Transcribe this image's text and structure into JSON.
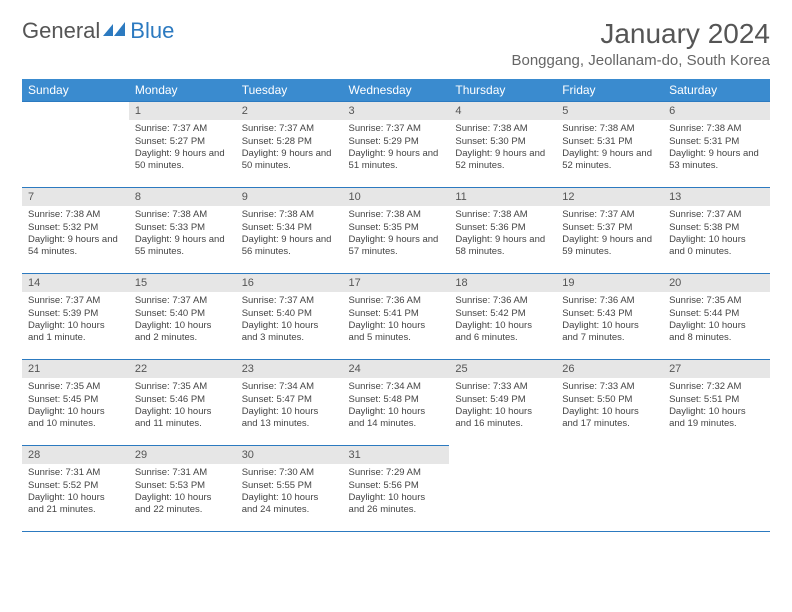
{
  "logo": {
    "text1": "General",
    "text2": "Blue"
  },
  "header": {
    "month_title": "January 2024",
    "location": "Bonggang, Jeollanam-do, South Korea"
  },
  "colors": {
    "header_bg": "#3a8bcf",
    "accent_line": "#2c7ac0",
    "daynum_bg": "#e6e6e6",
    "text": "#444444",
    "logo_gray": "#555555",
    "logo_blue": "#2c7ac0"
  },
  "days_of_week": [
    "Sunday",
    "Monday",
    "Tuesday",
    "Wednesday",
    "Thursday",
    "Friday",
    "Saturday"
  ],
  "calendar": {
    "layout": {
      "columns": 7,
      "rows": 5,
      "first_day_column_index": 1
    },
    "cells": [
      {
        "n": 1,
        "sr": "7:37 AM",
        "ss": "5:27 PM",
        "dl": "9 hours and 50 minutes."
      },
      {
        "n": 2,
        "sr": "7:37 AM",
        "ss": "5:28 PM",
        "dl": "9 hours and 50 minutes."
      },
      {
        "n": 3,
        "sr": "7:37 AM",
        "ss": "5:29 PM",
        "dl": "9 hours and 51 minutes."
      },
      {
        "n": 4,
        "sr": "7:38 AM",
        "ss": "5:30 PM",
        "dl": "9 hours and 52 minutes."
      },
      {
        "n": 5,
        "sr": "7:38 AM",
        "ss": "5:31 PM",
        "dl": "9 hours and 52 minutes."
      },
      {
        "n": 6,
        "sr": "7:38 AM",
        "ss": "5:31 PM",
        "dl": "9 hours and 53 minutes."
      },
      {
        "n": 7,
        "sr": "7:38 AM",
        "ss": "5:32 PM",
        "dl": "9 hours and 54 minutes."
      },
      {
        "n": 8,
        "sr": "7:38 AM",
        "ss": "5:33 PM",
        "dl": "9 hours and 55 minutes."
      },
      {
        "n": 9,
        "sr": "7:38 AM",
        "ss": "5:34 PM",
        "dl": "9 hours and 56 minutes."
      },
      {
        "n": 10,
        "sr": "7:38 AM",
        "ss": "5:35 PM",
        "dl": "9 hours and 57 minutes."
      },
      {
        "n": 11,
        "sr": "7:38 AM",
        "ss": "5:36 PM",
        "dl": "9 hours and 58 minutes."
      },
      {
        "n": 12,
        "sr": "7:37 AM",
        "ss": "5:37 PM",
        "dl": "9 hours and 59 minutes."
      },
      {
        "n": 13,
        "sr": "7:37 AM",
        "ss": "5:38 PM",
        "dl": "10 hours and 0 minutes."
      },
      {
        "n": 14,
        "sr": "7:37 AM",
        "ss": "5:39 PM",
        "dl": "10 hours and 1 minute."
      },
      {
        "n": 15,
        "sr": "7:37 AM",
        "ss": "5:40 PM",
        "dl": "10 hours and 2 minutes."
      },
      {
        "n": 16,
        "sr": "7:37 AM",
        "ss": "5:40 PM",
        "dl": "10 hours and 3 minutes."
      },
      {
        "n": 17,
        "sr": "7:36 AM",
        "ss": "5:41 PM",
        "dl": "10 hours and 5 minutes."
      },
      {
        "n": 18,
        "sr": "7:36 AM",
        "ss": "5:42 PM",
        "dl": "10 hours and 6 minutes."
      },
      {
        "n": 19,
        "sr": "7:36 AM",
        "ss": "5:43 PM",
        "dl": "10 hours and 7 minutes."
      },
      {
        "n": 20,
        "sr": "7:35 AM",
        "ss": "5:44 PM",
        "dl": "10 hours and 8 minutes."
      },
      {
        "n": 21,
        "sr": "7:35 AM",
        "ss": "5:45 PM",
        "dl": "10 hours and 10 minutes."
      },
      {
        "n": 22,
        "sr": "7:35 AM",
        "ss": "5:46 PM",
        "dl": "10 hours and 11 minutes."
      },
      {
        "n": 23,
        "sr": "7:34 AM",
        "ss": "5:47 PM",
        "dl": "10 hours and 13 minutes."
      },
      {
        "n": 24,
        "sr": "7:34 AM",
        "ss": "5:48 PM",
        "dl": "10 hours and 14 minutes."
      },
      {
        "n": 25,
        "sr": "7:33 AM",
        "ss": "5:49 PM",
        "dl": "10 hours and 16 minutes."
      },
      {
        "n": 26,
        "sr": "7:33 AM",
        "ss": "5:50 PM",
        "dl": "10 hours and 17 minutes."
      },
      {
        "n": 27,
        "sr": "7:32 AM",
        "ss": "5:51 PM",
        "dl": "10 hours and 19 minutes."
      },
      {
        "n": 28,
        "sr": "7:31 AM",
        "ss": "5:52 PM",
        "dl": "10 hours and 21 minutes."
      },
      {
        "n": 29,
        "sr": "7:31 AM",
        "ss": "5:53 PM",
        "dl": "10 hours and 22 minutes."
      },
      {
        "n": 30,
        "sr": "7:30 AM",
        "ss": "5:55 PM",
        "dl": "10 hours and 24 minutes."
      },
      {
        "n": 31,
        "sr": "7:29 AM",
        "ss": "5:56 PM",
        "dl": "10 hours and 26 minutes."
      }
    ]
  },
  "labels": {
    "sunrise": "Sunrise:",
    "sunset": "Sunset:",
    "daylight": "Daylight:"
  }
}
